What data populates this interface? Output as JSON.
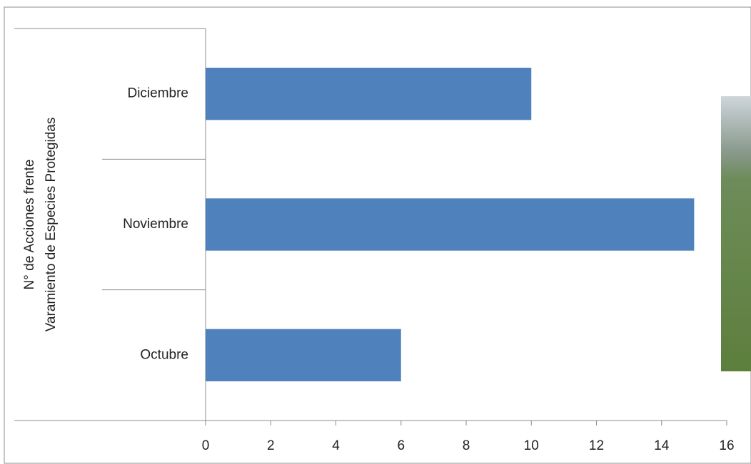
{
  "chart_data": {
    "type": "barh",
    "ylabel": [
      "N° de Acciones frente",
      "Varamiento de Especies Protegidas"
    ],
    "categories": [
      "Octubre",
      "Noviembre",
      "Diciembre"
    ],
    "values": [
      6,
      15,
      10
    ],
    "color": "#4f81bd",
    "xlim": [
      0,
      16
    ],
    "xticks": [
      0,
      2,
      4,
      6,
      8,
      10,
      12,
      14,
      16
    ],
    "grid": false
  }
}
